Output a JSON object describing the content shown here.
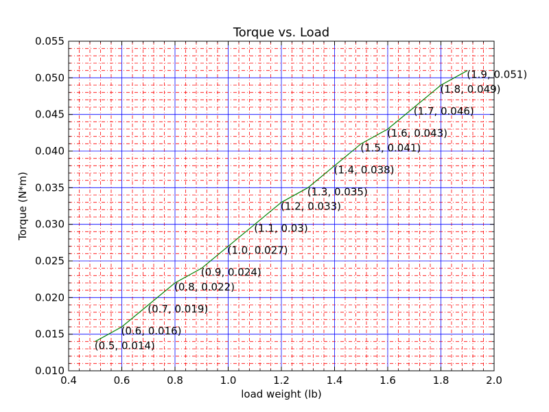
{
  "chart_data": {
    "type": "line",
    "title": "Torque vs. Load",
    "xlabel": "load weight (lb)",
    "ylabel": "Torque (N*m)",
    "xlim": [
      0.4,
      2.0
    ],
    "ylim": [
      0.01,
      0.055
    ],
    "x_ticks": [
      "0.4",
      "0.6",
      "0.8",
      "1.0",
      "1.2",
      "1.4",
      "1.6",
      "1.8",
      "2.0"
    ],
    "y_ticks": [
      "0.010",
      "0.015",
      "0.020",
      "0.025",
      "0.030",
      "0.035",
      "0.040",
      "0.045",
      "0.050",
      "0.055"
    ],
    "grid": {
      "major": true,
      "minor": true,
      "major_style": "solid",
      "minor_style": "dash-dot"
    },
    "legend": "none",
    "series": [
      {
        "x": [
          0.5,
          0.6,
          0.7,
          0.8,
          0.9,
          1.0,
          1.1,
          1.2,
          1.3,
          1.4,
          1.5,
          1.6,
          1.7,
          1.8,
          1.9
        ],
        "values": [
          0.014,
          0.016,
          0.019,
          0.022,
          0.024,
          0.027,
          0.03,
          0.033,
          0.035,
          0.038,
          0.041,
          0.043,
          0.046,
          0.049,
          0.051
        ]
      }
    ],
    "annotations": [
      "(0.5, 0.014)",
      "(0.6, 0.016)",
      "(0.7, 0.019)",
      "(0.8, 0.022)",
      "(0.9, 0.024)",
      "(1.0, 0.027)",
      "(1.1, 0.03)",
      "(1.2, 0.033)",
      "(1.3, 0.035)",
      "(1.4, 0.038)",
      "(1.5, 0.041)",
      "(1.6, 0.043)",
      "(1.7, 0.046)",
      "(1.8, 0.049)",
      "(1.9, 0.051)"
    ],
    "colors": {
      "line": "#008000",
      "major_grid": "#0000ff",
      "minor_grid": "#ff0000",
      "axes": "#000000"
    }
  }
}
